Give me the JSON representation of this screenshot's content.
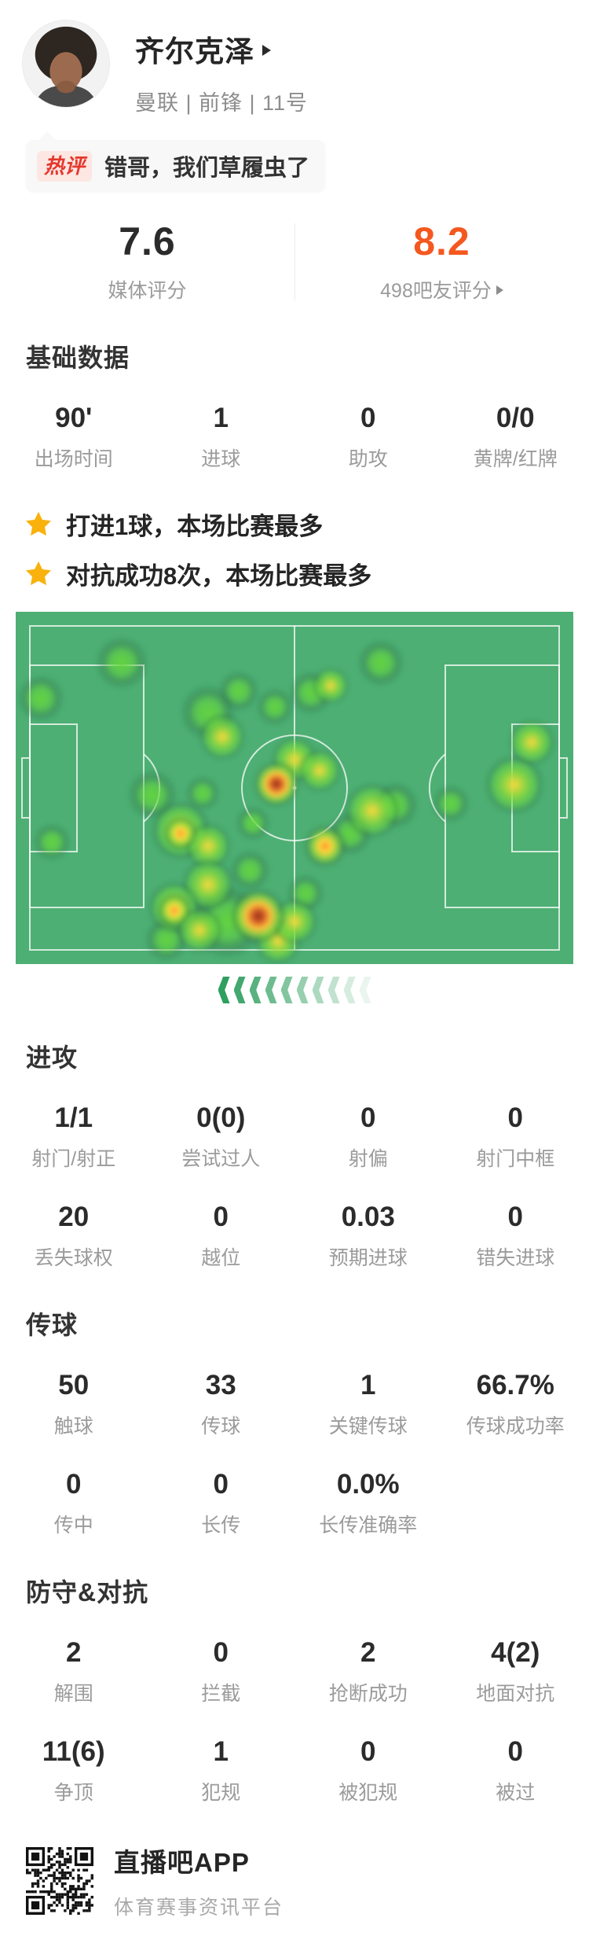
{
  "player": {
    "name": "齐尔克泽",
    "team_line": "曼联 | 前锋 | 11号"
  },
  "hot_comment": {
    "badge": "热评",
    "text": "错哥，我们草履虫了"
  },
  "ratings": {
    "media": {
      "value": "7.6",
      "label": "媒体评分"
    },
    "fans": {
      "value": "8.2",
      "label": "498吧友评分"
    }
  },
  "sections": {
    "basic": {
      "title": "基础数据",
      "stats": [
        {
          "value": "90'",
          "label": "出场时间"
        },
        {
          "value": "1",
          "label": "进球"
        },
        {
          "value": "0",
          "label": "助攻"
        },
        {
          "value": "0/0",
          "label": "黄牌/红牌"
        }
      ]
    },
    "highlights": [
      {
        "text": "打进1球，本场比赛最多"
      },
      {
        "text": "对抗成功8次，本场比赛最多"
      }
    ],
    "attack": {
      "title": "进攻",
      "rows": [
        [
          {
            "value": "1/1",
            "label": "射门/射正"
          },
          {
            "value": "0(0)",
            "label": "尝试过人"
          },
          {
            "value": "0",
            "label": "射偏"
          },
          {
            "value": "0",
            "label": "射门中框"
          }
        ],
        [
          {
            "value": "20",
            "label": "丢失球权"
          },
          {
            "value": "0",
            "label": "越位"
          },
          {
            "value": "0.03",
            "label": "预期进球"
          },
          {
            "value": "0",
            "label": "错失进球"
          }
        ]
      ]
    },
    "passing": {
      "title": "传球",
      "rows": [
        [
          {
            "value": "50",
            "label": "触球"
          },
          {
            "value": "33",
            "label": "传球"
          },
          {
            "value": "1",
            "label": "关键传球"
          },
          {
            "value": "66.7%",
            "label": "传球成功率"
          }
        ],
        [
          {
            "value": "0",
            "label": "传中"
          },
          {
            "value": "0",
            "label": "长传"
          },
          {
            "value": "0.0%",
            "label": "长传准确率"
          }
        ]
      ]
    },
    "defense": {
      "title": "防守&对抗",
      "rows": [
        [
          {
            "value": "2",
            "label": "解围"
          },
          {
            "value": "0",
            "label": "拦截"
          },
          {
            "value": "2",
            "label": "抢断成功"
          },
          {
            "value": "4(2)",
            "label": "地面对抗"
          }
        ],
        [
          {
            "value": "11(6)",
            "label": "争顶"
          },
          {
            "value": "1",
            "label": "犯规"
          },
          {
            "value": "0",
            "label": "被犯规"
          },
          {
            "value": "0",
            "label": "被过"
          }
        ]
      ]
    }
  },
  "footer": {
    "app_name": "直播吧APP",
    "tagline": "体育赛事资讯平台"
  },
  "colors": {
    "accent_orange": "#f4581f",
    "badge_red": "#e5382c",
    "star_gold": "#f9b20d",
    "pitch_green": "#4daf73",
    "pitch_line": "rgba(255,255,255,0.75)",
    "chevron_green": "47,159,95"
  },
  "decor": {
    "chevron_count": 10
  },
  "heatmap": {
    "blobs": [
      [
        270,
        394,
        48,
        "g"
      ],
      [
        135,
        65,
        34,
        "g"
      ],
      [
        32,
        110,
        30,
        "g"
      ],
      [
        284,
        101,
        26,
        "g"
      ],
      [
        330,
        121,
        24,
        "g"
      ],
      [
        245,
        128,
        36,
        "g"
      ],
      [
        376,
        103,
        28,
        "g"
      ],
      [
        465,
        65,
        30,
        "g"
      ],
      [
        174,
        233,
        32,
        "g"
      ],
      [
        238,
        231,
        22,
        "g"
      ],
      [
        302,
        269,
        22,
        "g"
      ],
      [
        426,
        282,
        28,
        "g"
      ],
      [
        483,
        246,
        30,
        "g"
      ],
      [
        554,
        244,
        24,
        "g"
      ],
      [
        46,
        293,
        24,
        "g"
      ],
      [
        298,
        329,
        26,
        "g"
      ],
      [
        369,
        358,
        24,
        "g"
      ],
      [
        192,
        417,
        28,
        "g"
      ],
      [
        263,
        159,
        30,
        "y"
      ],
      [
        401,
        94,
        24,
        "y"
      ],
      [
        355,
        188,
        30,
        "y"
      ],
      [
        387,
        202,
        28,
        "y"
      ],
      [
        454,
        253,
        36,
        "y"
      ],
      [
        657,
        166,
        30,
        "y"
      ],
      [
        635,
        220,
        38,
        "y"
      ],
      [
        210,
        278,
        38,
        "y"
      ],
      [
        245,
        298,
        30,
        "y"
      ],
      [
        245,
        347,
        34,
        "y"
      ],
      [
        202,
        376,
        34,
        "y"
      ],
      [
        234,
        405,
        30,
        "y"
      ],
      [
        334,
        419,
        30,
        "y"
      ],
      [
        355,
        394,
        30,
        "y"
      ],
      [
        394,
        298,
        28,
        "o"
      ],
      [
        210,
        282,
        22,
        "o"
      ],
      [
        202,
        380,
        22,
        "o"
      ],
      [
        332,
        219,
        30,
        "r"
      ],
      [
        309,
        387,
        36,
        "r"
      ]
    ]
  }
}
